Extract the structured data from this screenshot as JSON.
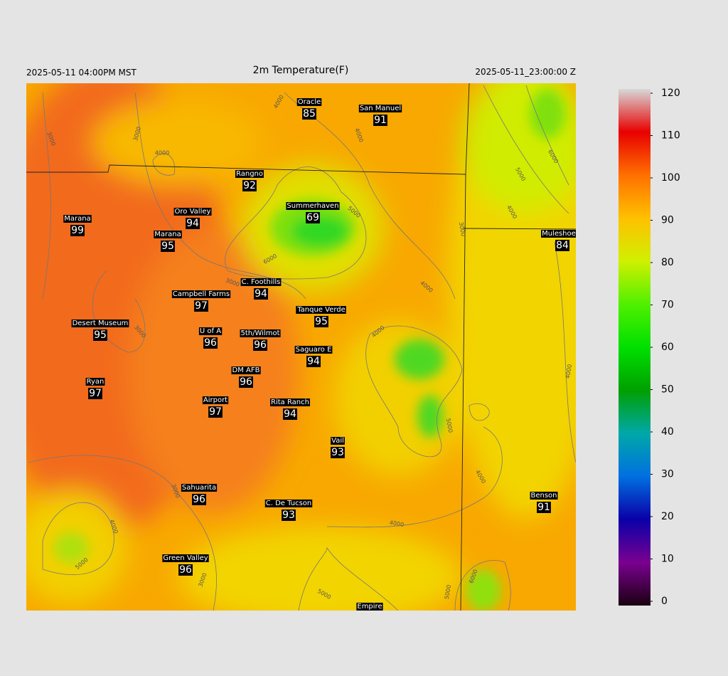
{
  "header": {
    "left": "2025-05-11 04:00PM MST",
    "title": "2m Temperature(F)",
    "right": "2025-05-11_23:00:00 Z"
  },
  "stations": [
    {
      "name": "Oracle",
      "value": 85
    },
    {
      "name": "San Manuel",
      "value": 91
    },
    {
      "name": "Rangno",
      "value": 92
    },
    {
      "name": "Summerhaven",
      "value": 69
    },
    {
      "name": "Marana",
      "value": 99
    },
    {
      "name": "Oro Valley",
      "value": 94
    },
    {
      "name": "Marana",
      "value": 95
    },
    {
      "name": "Muleshoe R",
      "value": 84
    },
    {
      "name": "C. Foothills",
      "value": 94
    },
    {
      "name": "Campbell Farms",
      "value": 97
    },
    {
      "name": "Tanque Verde",
      "value": 95
    },
    {
      "name": "Desert Museum",
      "value": 95
    },
    {
      "name": "U of A",
      "value": 96
    },
    {
      "name": "5th/Wilmot",
      "value": 96
    },
    {
      "name": "Saguaro E",
      "value": 94
    },
    {
      "name": "DM AFB",
      "value": 96
    },
    {
      "name": "Ryan",
      "value": 97
    },
    {
      "name": "Airport",
      "value": 97
    },
    {
      "name": "Rita Ranch",
      "value": 94
    },
    {
      "name": "Vail",
      "value": 93
    },
    {
      "name": "Sahuarita",
      "value": 96
    },
    {
      "name": "C. De Tucson",
      "value": 93
    },
    {
      "name": "Benson",
      "value": 91
    },
    {
      "name": "Green Valley",
      "value": 96
    },
    {
      "name": "Empire",
      "value": null
    }
  ],
  "contour_labels": [
    3000,
    3000,
    4000,
    4000,
    4000,
    5000,
    6000,
    3000,
    3000,
    4000,
    4000,
    6000,
    5000,
    4000,
    3000,
    4000,
    5000,
    4000,
    3000,
    4000,
    5000,
    4000,
    3000,
    5000,
    6000,
    5000
  ],
  "colorbar": {
    "range": [
      0,
      120
    ],
    "ticks": [
      0,
      10,
      20,
      30,
      40,
      50,
      60,
      70,
      80,
      90,
      100,
      110,
      120
    ],
    "colors": [
      "#1a0010",
      "#7a0090",
      "#0a00a8",
      "#0070e0",
      "#00a8a8",
      "#00a000",
      "#00e000",
      "#50f000",
      "#d0f000",
      "#ffc000",
      "#ff7000",
      "#e80000",
      "#d8d8d8"
    ]
  }
}
